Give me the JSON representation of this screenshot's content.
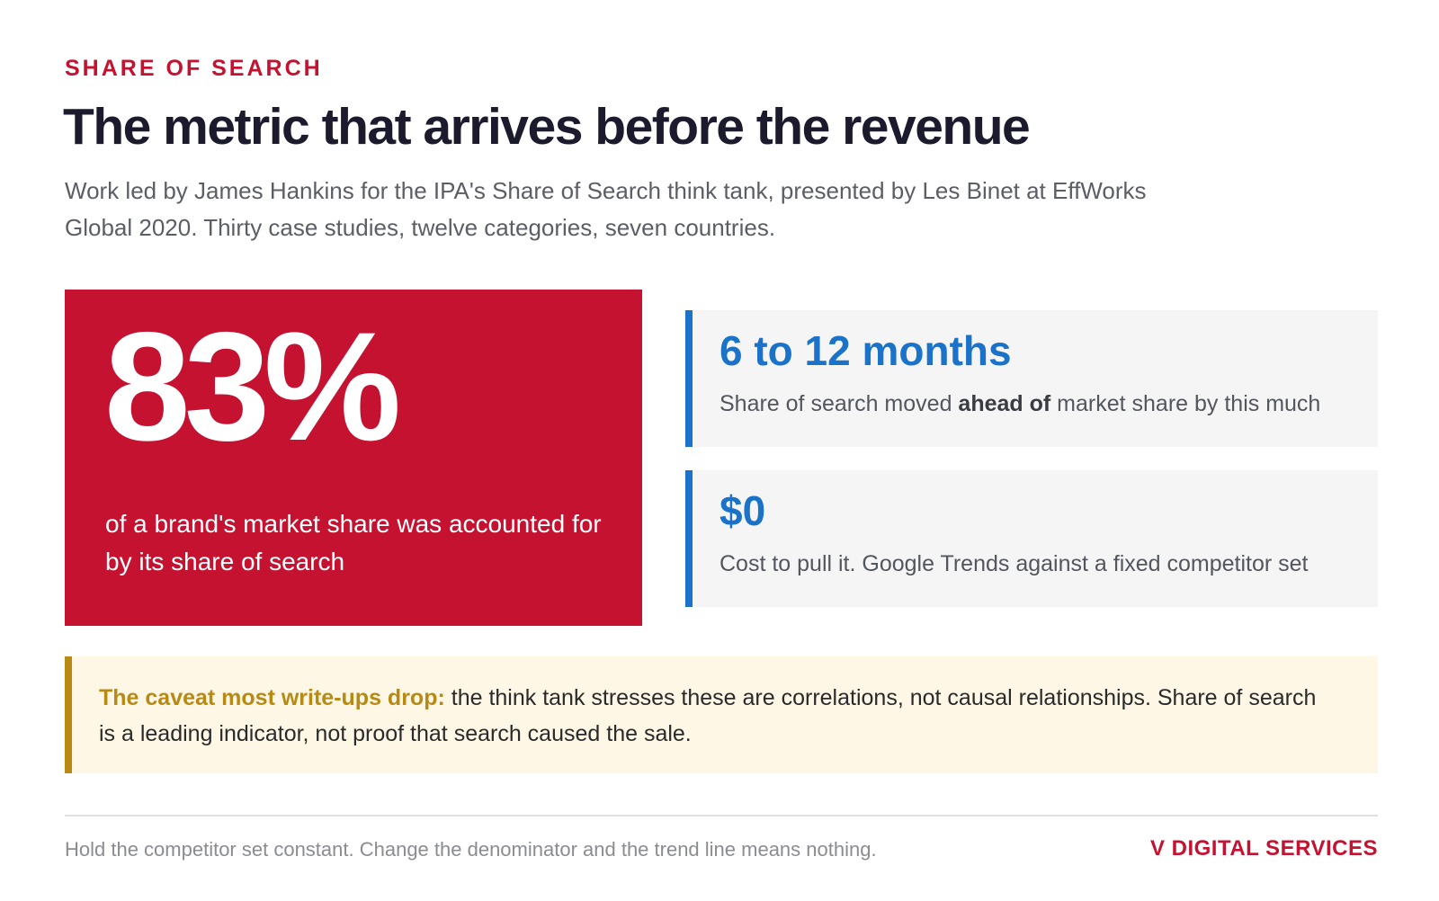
{
  "header": {
    "eyebrow": "SHARE OF SEARCH",
    "title": "The metric that arrives before the revenue",
    "subtitle": "Work led by James Hankins for the IPA's Share of Search think tank, presented by Les Binet at EffWorks Global 2020. Thirty case studies, twelve categories, seven countries."
  },
  "hero": {
    "value": "83%",
    "description": "of a brand's market share was accounted for by its share of search"
  },
  "stats": [
    {
      "value": "6 to 12 months",
      "label_before": "Share of search moved ",
      "label_bold": "ahead of",
      "label_after": " market share by this much"
    },
    {
      "value": "$0",
      "label": "Cost to pull it. Google Trends against a fixed competitor set"
    }
  ],
  "caveat": {
    "lead": "The caveat most write-ups drop:",
    "body": " the think tank stresses these are correlations, not causal relationships. Share of search is a leading indicator, not proof that search caused the sale."
  },
  "footer": {
    "note": "Hold the competitor set constant. Change the denominator and the trend line means nothing.",
    "brand": "V DIGITAL SERVICES"
  },
  "colors": {
    "brand_red": "#c41230",
    "stat_blue": "#1a73c8",
    "caveat_gold": "#b88a14",
    "caveat_bg": "#fef7e6",
    "stat_bg": "#f5f5f5"
  }
}
